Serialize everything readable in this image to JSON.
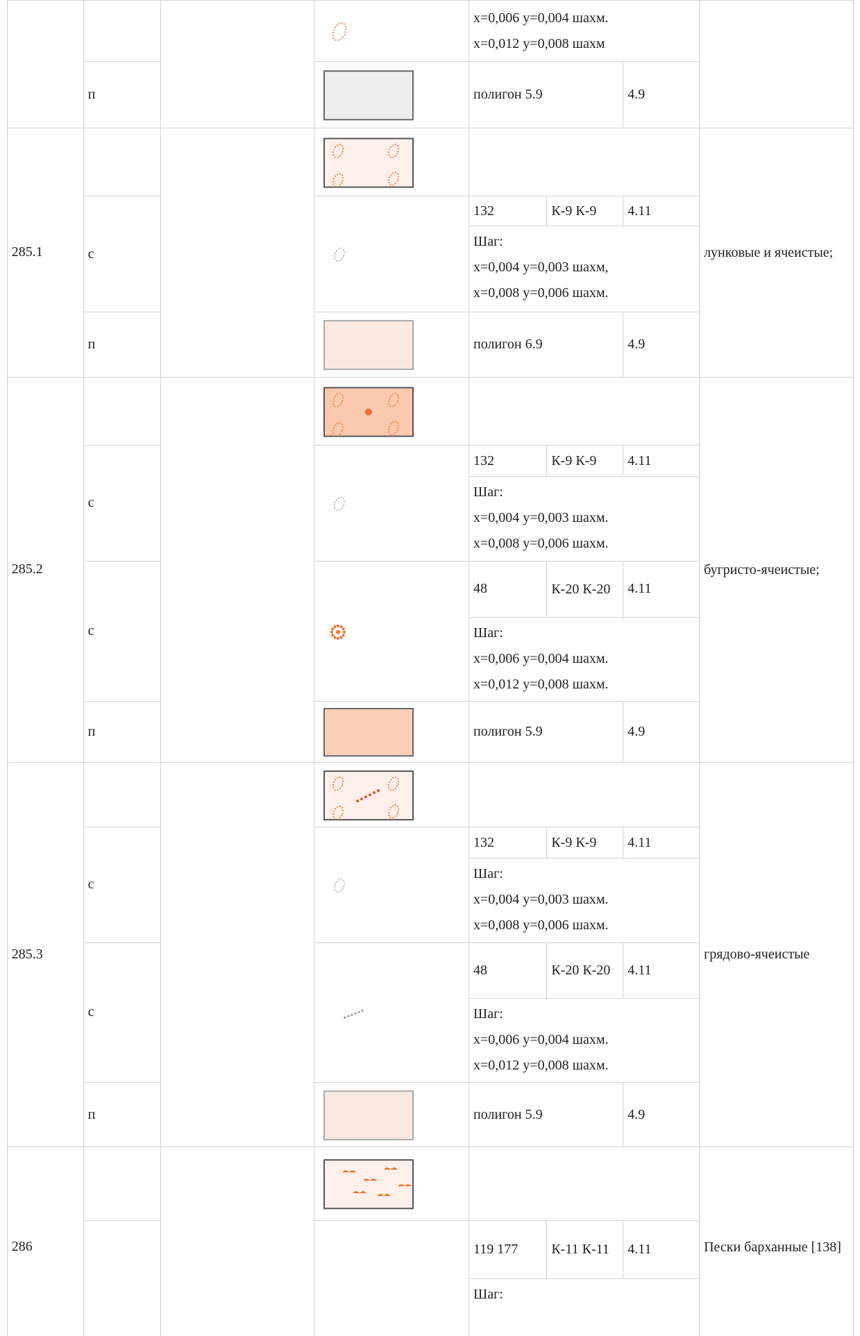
{
  "table": {
    "groups": [
      {
        "rows": [
          {
            "params": [
              "x=0,006 y=0,004 шахм.",
              "x=0,012 y=0,008 шахм"
            ]
          },
          {
            "type": "п",
            "code": "полигон 5.9",
            "ref": "4.9"
          }
        ]
      },
      {
        "id": "285.1",
        "description": "лунковые и ячеистые;",
        "rows": [
          {
            "type": "с",
            "code": "132",
            "sign": "К-9 К-9",
            "ref": "4.11",
            "params": [
              "Шаг:",
              "x=0,004 y=0,003 шахм,",
              "x=0,008 y=0,006 шахм."
            ]
          },
          {
            "type": "п",
            "code": "полигон 6.9",
            "ref": "4.9"
          }
        ]
      },
      {
        "id": "285.2",
        "description": "бугристо-ячеистые;",
        "rows": [
          {
            "type": "с",
            "code": "132",
            "sign": "К-9 К-9",
            "ref": "4.11",
            "params": [
              "Шаг:",
              "x=0,004 y=0,003 шахм.",
              "x=0,008 y=0,006 шахм."
            ]
          },
          {
            "type": "с",
            "code": "48",
            "sign": "К-20 К-20",
            "ref": "4.11",
            "params": [
              "Шаг:",
              "x=0,006 y=0,004 шахм.",
              "x=0,012 y=0,008 шахм."
            ]
          },
          {
            "type": "п",
            "code": "полигон 5.9",
            "ref": "4.9"
          }
        ]
      },
      {
        "id": "285.3",
        "description": "грядово-ячеистые",
        "rows": [
          {
            "type": "с",
            "code": "132",
            "sign": "К-9 К-9",
            "ref": "4.11",
            "params": [
              "Шаг:",
              "x=0,004 y=0,003 шахм.",
              "x=0,008 y=0,006 шахм."
            ]
          },
          {
            "type": "с",
            "code": "48",
            "sign": "К-20 К-20",
            "ref": "4.11",
            "params": [
              "Шаг:",
              "x=0,006 y=0,004 шахм.",
              "x=0,012 y=0,008 шахм."
            ]
          },
          {
            "type": "п",
            "code": "полигон 5.9",
            "ref": "4.9"
          }
        ]
      },
      {
        "id": "286",
        "description": "Пески барханные [138]",
        "rows": [
          {
            "code": "119 177",
            "sign": "К-11 К-11",
            "ref": "4.11",
            "params": [
              "Шаг:"
            ]
          }
        ]
      }
    ]
  }
}
